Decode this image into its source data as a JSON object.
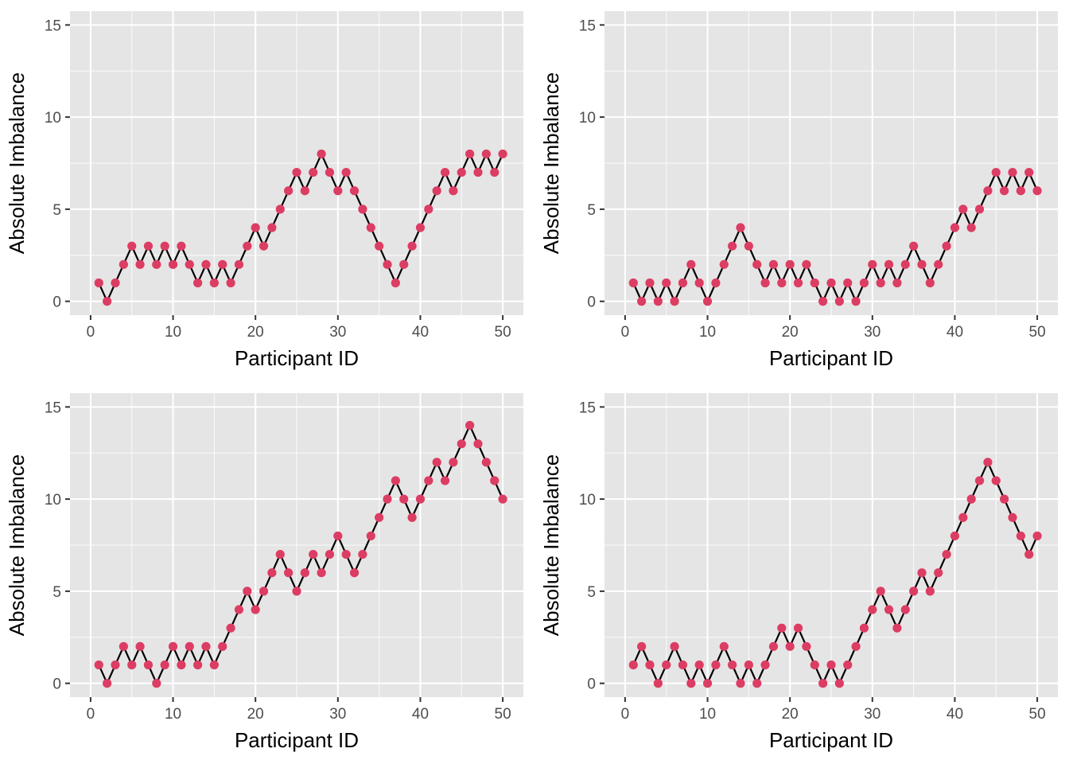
{
  "colors": {
    "point": "#dc3d63",
    "line": "#000000",
    "panel": "#e5e5e5",
    "grid": "#ffffff"
  },
  "chart_data": [
    {
      "type": "line",
      "xlabel": "Participant ID",
      "ylabel": "Absolute Imbalance",
      "xlim": [
        0,
        50
      ],
      "ylim": [
        0,
        15
      ],
      "x_ticks": [
        0,
        10,
        20,
        30,
        40,
        50
      ],
      "y_ticks": [
        0,
        5,
        10,
        15
      ],
      "x": [
        1,
        2,
        3,
        4,
        5,
        6,
        7,
        8,
        9,
        10,
        11,
        12,
        13,
        14,
        15,
        16,
        17,
        18,
        19,
        20,
        21,
        22,
        23,
        24,
        25,
        26,
        27,
        28,
        29,
        30,
        31,
        32,
        33,
        34,
        35,
        36,
        37,
        38,
        39,
        40,
        41,
        42,
        43,
        44,
        45,
        46,
        47,
        48,
        49,
        50
      ],
      "series": [
        {
          "values": [
            1,
            0,
            1,
            2,
            3,
            2,
            3,
            2,
            3,
            2,
            3,
            2,
            1,
            2,
            1,
            2,
            1,
            2,
            3,
            4,
            3,
            4,
            5,
            6,
            7,
            6,
            7,
            8,
            7,
            6,
            7,
            6,
            5,
            4,
            3,
            2,
            1,
            2,
            3,
            4,
            5,
            6,
            7,
            6,
            7,
            8,
            7,
            8,
            7,
            8
          ]
        }
      ]
    },
    {
      "type": "line",
      "xlabel": "Participant ID",
      "ylabel": "Absolute Imbalance",
      "xlim": [
        0,
        50
      ],
      "ylim": [
        0,
        15
      ],
      "x_ticks": [
        0,
        10,
        20,
        30,
        40,
        50
      ],
      "y_ticks": [
        0,
        5,
        10,
        15
      ],
      "x": [
        1,
        2,
        3,
        4,
        5,
        6,
        7,
        8,
        9,
        10,
        11,
        12,
        13,
        14,
        15,
        16,
        17,
        18,
        19,
        20,
        21,
        22,
        23,
        24,
        25,
        26,
        27,
        28,
        29,
        30,
        31,
        32,
        33,
        34,
        35,
        36,
        37,
        38,
        39,
        40,
        41,
        42,
        43,
        44,
        45,
        46,
        47,
        48,
        49,
        50
      ],
      "series": [
        {
          "values": [
            1,
            0,
            1,
            0,
            1,
            0,
            1,
            2,
            1,
            0,
            1,
            2,
            3,
            4,
            3,
            2,
            1,
            2,
            1,
            2,
            1,
            2,
            1,
            0,
            1,
            0,
            1,
            0,
            1,
            2,
            1,
            2,
            1,
            2,
            3,
            2,
            1,
            2,
            3,
            4,
            5,
            4,
            5,
            6,
            7,
            6,
            7,
            6,
            7,
            6
          ]
        }
      ]
    },
    {
      "type": "line",
      "xlabel": "Participant ID",
      "ylabel": "Absolute Imbalance",
      "xlim": [
        0,
        50
      ],
      "ylim": [
        0,
        15
      ],
      "x_ticks": [
        0,
        10,
        20,
        30,
        40,
        50
      ],
      "y_ticks": [
        0,
        5,
        10,
        15
      ],
      "x": [
        1,
        2,
        3,
        4,
        5,
        6,
        7,
        8,
        9,
        10,
        11,
        12,
        13,
        14,
        15,
        16,
        17,
        18,
        19,
        20,
        21,
        22,
        23,
        24,
        25,
        26,
        27,
        28,
        29,
        30,
        31,
        32,
        33,
        34,
        35,
        36,
        37,
        38,
        39,
        40,
        41,
        42,
        43,
        44,
        45,
        46,
        47,
        48,
        49,
        50
      ],
      "series": [
        {
          "values": [
            1,
            0,
            1,
            2,
            1,
            2,
            1,
            0,
            1,
            2,
            1,
            2,
            1,
            2,
            1,
            2,
            3,
            4,
            5,
            4,
            5,
            6,
            7,
            6,
            5,
            6,
            7,
            6,
            7,
            8,
            7,
            6,
            7,
            8,
            9,
            10,
            11,
            10,
            9,
            10,
            11,
            12,
            11,
            12,
            13,
            14,
            13,
            12,
            11,
            10
          ]
        }
      ]
    },
    {
      "type": "line",
      "xlabel": "Participant ID",
      "ylabel": "Absolute Imbalance",
      "xlim": [
        0,
        50
      ],
      "ylim": [
        0,
        15
      ],
      "x_ticks": [
        0,
        10,
        20,
        30,
        40,
        50
      ],
      "y_ticks": [
        0,
        5,
        10,
        15
      ],
      "x": [
        1,
        2,
        3,
        4,
        5,
        6,
        7,
        8,
        9,
        10,
        11,
        12,
        13,
        14,
        15,
        16,
        17,
        18,
        19,
        20,
        21,
        22,
        23,
        24,
        25,
        26,
        27,
        28,
        29,
        30,
        31,
        32,
        33,
        34,
        35,
        36,
        37,
        38,
        39,
        40,
        41,
        42,
        43,
        44,
        45,
        46,
        47,
        48,
        49,
        50
      ],
      "series": [
        {
          "values": [
            1,
            2,
            1,
            0,
            1,
            2,
            1,
            0,
            1,
            0,
            1,
            2,
            1,
            0,
            1,
            0,
            1,
            2,
            3,
            2,
            3,
            2,
            1,
            0,
            1,
            0,
            1,
            2,
            3,
            4,
            5,
            4,
            3,
            4,
            5,
            6,
            5,
            6,
            7,
            8,
            9,
            10,
            11,
            12,
            11,
            10,
            9,
            8,
            7,
            8
          ]
        }
      ]
    }
  ]
}
